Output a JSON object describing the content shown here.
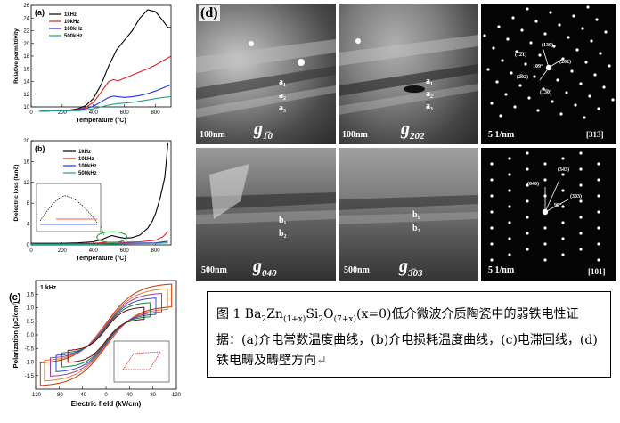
{
  "figure": {
    "panel_a": {
      "label": "(a)",
      "chart_data": {
        "type": "line",
        "xlabel": "Temperature (°C)",
        "ylabel": "Relative permittivity",
        "xlim": [
          0,
          900
        ],
        "ylim": [
          10,
          26
        ],
        "xticks": [
          "0",
          "200",
          "400",
          "600",
          "800"
        ],
        "yticks": [
          "10",
          "12",
          "14",
          "16",
          "18",
          "20",
          "22",
          "24",
          "26"
        ],
        "legend_position": "top-left",
        "series": [
          {
            "name": "1kHz",
            "color": "#000000",
            "x": [
              50,
              150,
              250,
              300,
              350,
              400,
              450,
              500,
              550,
              600,
              650,
              700,
              750,
              800,
              850,
              880,
              900
            ],
            "y": [
              9.3,
              9.4,
              9.5,
              9.7,
              10.2,
              11.3,
              13.5,
              16.5,
              19,
              20.5,
              22,
              24,
              25.3,
              25,
              23.5,
              22.5,
              22.5
            ]
          },
          {
            "name": "10kHz",
            "color": "#e02020",
            "x": [
              50,
              150,
              250,
              300,
              350,
              400,
              450,
              500,
              530,
              560,
              600,
              650,
              700,
              750,
              800,
              850,
              900
            ],
            "y": [
              9.3,
              9.4,
              9.5,
              9.6,
              9.9,
              10.7,
              12.3,
              14,
              14.3,
              14.1,
              14.5,
              15,
              15.5,
              16,
              16.6,
              17.3,
              18
            ]
          },
          {
            "name": "100kHz",
            "color": "#2030e0",
            "x": [
              50,
              150,
              250,
              300,
              350,
              400,
              450,
              500,
              530,
              560,
              600,
              650,
              700,
              750,
              800,
              850,
              900
            ],
            "y": [
              9.3,
              9.4,
              9.4,
              9.5,
              9.7,
              10.1,
              10.8,
              11.5,
              11.7,
              11.6,
              11.5,
              11.6,
              11.8,
              12.1,
              12.5,
              13,
              13.5
            ]
          },
          {
            "name": "500kHz",
            "color": "#20a090",
            "x": [
              50,
              150,
              250,
              300,
              350,
              400,
              450,
              500,
              550,
              600,
              650,
              700,
              750,
              800,
              850,
              900
            ],
            "y": [
              9.3,
              9.4,
              9.4,
              9.4,
              9.5,
              9.7,
              10,
              10.3,
              10.5,
              10.6,
              10.7,
              10.9,
              11.1,
              11.3,
              11.5,
              11.6
            ]
          }
        ]
      }
    },
    "panel_b": {
      "label": "(b)",
      "chart_data": {
        "type": "line",
        "xlabel": "Temperature (°C)",
        "ylabel": "Dielectric loss (tanδ)",
        "xlim": [
          0,
          900
        ],
        "ylim": [
          0,
          20
        ],
        "xticks": [
          "0",
          "200",
          "400",
          "600",
          "800"
        ],
        "yticks": [
          "0",
          "4",
          "8",
          "12",
          "16",
          "20"
        ],
        "legend_position": "top-right",
        "series": [
          {
            "name": "1kHz",
            "color": "#000000",
            "x": [
              0,
              100,
              200,
              300,
              400,
              450,
              500,
              520,
              560,
              600,
              650,
              700,
              750,
              780,
              800,
              830,
              860,
              880
            ],
            "y": [
              0.3,
              0.3,
              0.3,
              0.4,
              0.6,
              1.0,
              1.6,
              1.8,
              1.5,
              1.3,
              1.4,
              1.9,
              3.2,
              4.6,
              6,
              9,
              13,
              19.5
            ]
          },
          {
            "name": "10kHz",
            "color": "#e02020",
            "x": [
              0,
              200,
              400,
              500,
              600,
              700,
              800,
              850,
              880
            ],
            "y": [
              0.2,
              0.2,
              0.3,
              0.5,
              0.5,
              0.6,
              0.9,
              1.6,
              2.6
            ]
          },
          {
            "name": "100kHz",
            "color": "#2030e0",
            "x": [
              0,
              200,
              400,
              600,
              800,
              880
            ],
            "y": [
              0.1,
              0.1,
              0.2,
              0.3,
              0.4,
              0.7
            ]
          },
          {
            "name": "500kHz",
            "color": "#20a090",
            "x": [
              0,
              200,
              400,
              600,
              800,
              880
            ],
            "y": [
              0.1,
              0.1,
              0.1,
              0.2,
              0.3,
              0.4
            ]
          }
        ]
      }
    },
    "panel_c": {
      "label": "(c)",
      "note": "1 kHz",
      "chart_data": {
        "type": "line",
        "xlabel": "Electric field (kV/cm)",
        "ylabel": "Polarization (μC/cm²)",
        "xlim": [
          -120,
          120
        ],
        "ylim": [
          -2.0,
          2.0
        ],
        "xticks": [
          "-120",
          "-80",
          "-40",
          "0",
          "40",
          "80",
          "120"
        ],
        "yticks": [
          "-1.5",
          "-1.0",
          "-0.5",
          "0.0",
          "0.5",
          "1.0",
          "1.5"
        ],
        "loops": [
          {
            "color": "#cc3300",
            "emax": 112,
            "pmax": 1.65,
            "offset": 0.42
          },
          {
            "color": "#e08030",
            "emax": 105,
            "pmax": 1.5,
            "offset": 0.38
          },
          {
            "color": "#a040a0",
            "emax": 95,
            "pmax": 1.35,
            "offset": 0.34
          },
          {
            "color": "#3050c0",
            "emax": 85,
            "pmax": 1.2,
            "offset": 0.3
          },
          {
            "color": "#208040",
            "emax": 75,
            "pmax": 1.05,
            "offset": 0.26
          },
          {
            "color": "#800000",
            "emax": 65,
            "pmax": 0.9,
            "offset": 0.22
          }
        ]
      }
    },
    "panel_d": {
      "label": "(d)",
      "images": [
        {
          "scale": "100nm",
          "g": "g",
          "gsub": "1̅0",
          "markers": [
            "a₁",
            "a₂",
            "a₃"
          ]
        },
        {
          "scale": "100nm",
          "g": "g",
          "gsub": "202",
          "markers": [
            "a₁",
            "a₂",
            "a₃"
          ]
        },
        {
          "scale": "5 1/nm",
          "zone": "[313]",
          "spots": [
            "(130)",
            "(1̅2̅1)",
            "(202)",
            "(2̅02)",
            "(1̅3̅0)",
            "109°"
          ]
        },
        {
          "scale": "500nm",
          "g": "g",
          "gsub": "040",
          "markers": [
            "b₁",
            "b₂"
          ]
        },
        {
          "scale": "500nm",
          "g": "g",
          "gsub": "3̅03",
          "markers": [
            "b₁",
            "b₂"
          ]
        },
        {
          "scale": "5 1/nm",
          "zone": "[101]",
          "spots": [
            "(040)",
            "(303)",
            "(3̅43)",
            "90°"
          ]
        }
      ]
    }
  },
  "caption": {
    "prefix": "图 1 Ba",
    "s1": "2",
    "t1": "Zn",
    "s2": "(1+x)",
    "t2": "Si",
    "s3": "2",
    "t3": "O",
    "s4": "(7+x)",
    "t4": "(x=0)低介微波介质陶瓷中的弱铁电性证据：(a)介电常数温度曲线，(b)介电损耗温度曲线，(c)电滞回线，(d)铁电畴及畴壁方向",
    "end_mark": "↵"
  }
}
